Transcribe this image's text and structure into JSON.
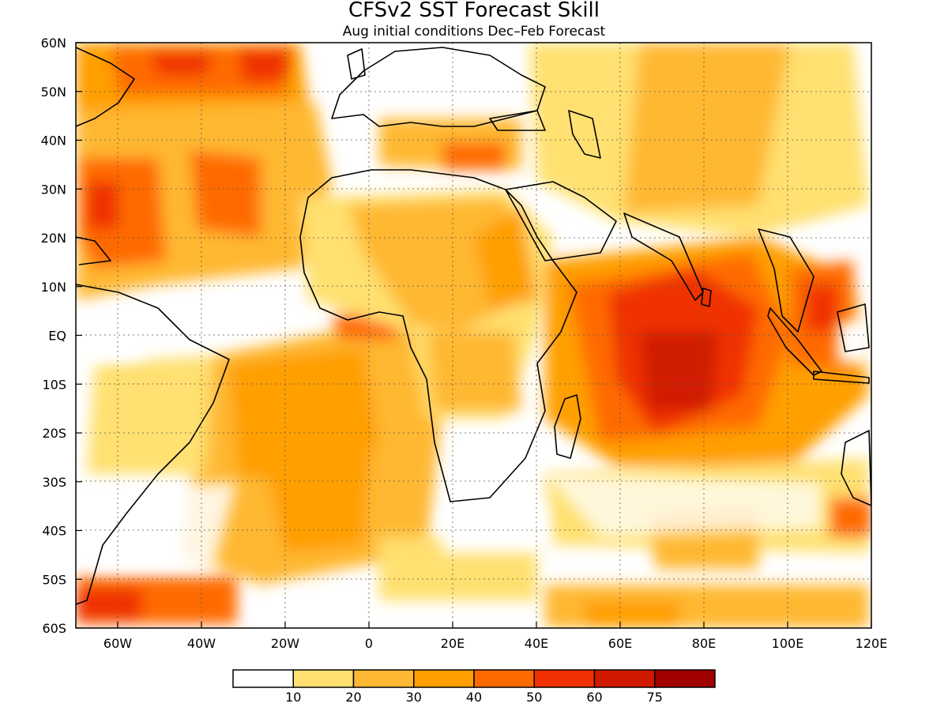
{
  "title": "CFSv2 SST Forecast Skill",
  "subtitle": "Aug initial conditions  Dec–Feb Forecast",
  "map": {
    "lon_range": [
      -70,
      120
    ],
    "lat_range": [
      -60,
      60
    ],
    "x_ticks": [
      "60W",
      "40W",
      "20W",
      "0",
      "20E",
      "40E",
      "60E",
      "80E",
      "100E",
      "120E"
    ],
    "x_tick_values": [
      -60,
      -40,
      -20,
      0,
      20,
      40,
      60,
      80,
      100,
      120
    ],
    "y_ticks": [
      "60N",
      "50N",
      "40N",
      "30N",
      "20N",
      "10N",
      "EQ",
      "10S",
      "20S",
      "30S",
      "40S",
      "50S",
      "60S"
    ],
    "y_tick_values": [
      60,
      50,
      40,
      30,
      20,
      10,
      0,
      -10,
      -20,
      -30,
      -40,
      -50,
      -60
    ],
    "grid": "dotted"
  },
  "colorbar": {
    "labels": [
      "10",
      "20",
      "30",
      "40",
      "50",
      "60",
      "75"
    ],
    "colors": [
      "#ffffff",
      "#ffe070",
      "#ffb833",
      "#ff9f00",
      "#ff6a00",
      "#f03000",
      "#d01a00",
      "#a00000"
    ]
  }
}
